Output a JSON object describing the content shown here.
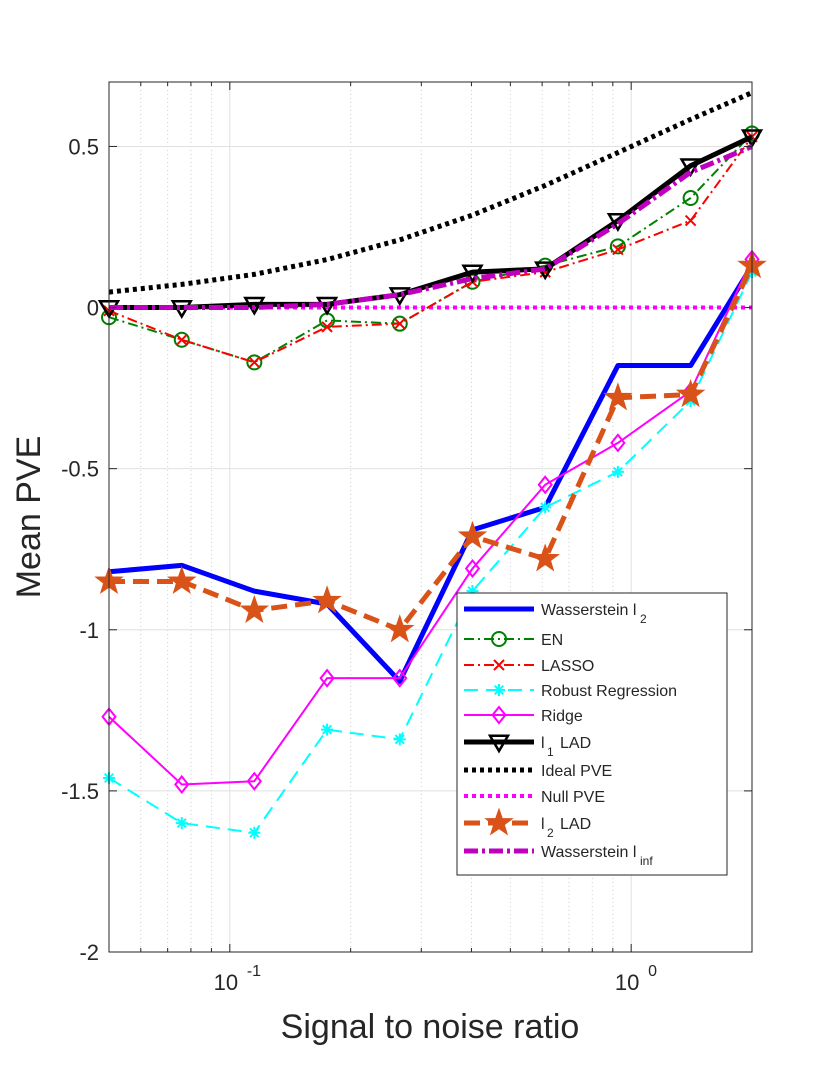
{
  "chart_data": {
    "type": "line",
    "title": "",
    "xlabel": "Signal to noise ratio",
    "ylabel": "Mean PVE",
    "xscale": "log",
    "xlim": [
      0.05,
      2.0
    ],
    "ylim": [
      -2,
      0.7
    ],
    "yticks": [
      {
        "value": 0.5,
        "label": "0.5"
      },
      {
        "value": 0,
        "label": "0"
      },
      {
        "value": -0.5,
        "label": "-0.5"
      },
      {
        "value": -1,
        "label": "-1"
      },
      {
        "value": -1.5,
        "label": "-1.5"
      },
      {
        "value": -2,
        "label": "-2"
      }
    ],
    "xticks": [
      {
        "value": 0.1,
        "base": "10",
        "exp": "-1"
      },
      {
        "value": 1,
        "base": "10",
        "exp": "0"
      }
    ],
    "grid": true,
    "legend_position": "bottom-right",
    "x": [
      0.05,
      0.0759,
      0.1151,
      0.1747,
      0.2651,
      0.4024,
      0.6106,
      0.9267,
      1.4064,
      2.0
    ],
    "series": [
      {
        "name": "Wasserstein l",
        "sub": "2",
        "subpos": "far",
        "color": "#0000ff",
        "dash": "",
        "width": 5,
        "marker": "none",
        "values": [
          -0.82,
          -0.8,
          -0.88,
          -0.92,
          -1.16,
          -0.69,
          -0.62,
          -0.18,
          -0.18,
          0.13
        ]
      },
      {
        "name": "EN",
        "sub": "",
        "color": "#008000",
        "dash": "10,4,2,4",
        "width": 2,
        "marker": "circle",
        "values": [
          -0.03,
          -0.1,
          -0.17,
          -0.04,
          -0.05,
          0.08,
          0.13,
          0.19,
          0.34,
          0.54
        ]
      },
      {
        "name": "LASSO",
        "sub": "",
        "color": "#ff0000",
        "dash": "10,4,2,4",
        "width": 2,
        "marker": "x",
        "values": [
          -0.01,
          -0.1,
          -0.17,
          -0.06,
          -0.05,
          0.08,
          0.11,
          0.18,
          0.27,
          0.53
        ]
      },
      {
        "name": "Robust Regression",
        "sub": "",
        "color": "#00ffff",
        "dash": "14,8",
        "width": 2,
        "marker": "star",
        "values": [
          -1.46,
          -1.6,
          -1.63,
          -1.31,
          -1.34,
          -0.88,
          -0.62,
          -0.51,
          -0.29,
          0.11
        ]
      },
      {
        "name": "Ridge",
        "sub": "",
        "color": "#ff00ff",
        "dash": "",
        "width": 2,
        "marker": "diamond",
        "values": [
          -1.27,
          -1.48,
          -1.47,
          -1.15,
          -1.15,
          -0.81,
          -0.55,
          -0.42,
          -0.26,
          0.15
        ]
      },
      {
        "name": "l",
        "sub": "1",
        "subpos": "near",
        "after": "LAD",
        "color": "#000000",
        "dash": "",
        "width": 5,
        "marker": "triangle",
        "values": [
          0.0,
          0.0,
          0.01,
          0.01,
          0.04,
          0.11,
          0.12,
          0.27,
          0.44,
          0.53
        ]
      },
      {
        "name": "Ideal PVE",
        "sub": "",
        "color": "#000000",
        "dash": "4,4",
        "width": 5,
        "marker": "none",
        "values": [
          0.048,
          0.072,
          0.103,
          0.149,
          0.21,
          0.287,
          0.379,
          0.481,
          0.584,
          0.667
        ]
      },
      {
        "name": "Null PVE",
        "sub": "",
        "color": "#ff00ff",
        "dash": "4,4",
        "width": 4,
        "marker": "none",
        "values": [
          0,
          0,
          0,
          0,
          0,
          0,
          0,
          0,
          0,
          0
        ]
      },
      {
        "name": "l",
        "sub": "2",
        "subpos": "near",
        "after": "LAD",
        "color": "#d95319",
        "dash": "16,8",
        "width": 5,
        "marker": "pentagram",
        "values": [
          -0.85,
          -0.85,
          -0.94,
          -0.91,
          -1.0,
          -0.71,
          -0.78,
          -0.28,
          -0.27,
          0.13
        ]
      },
      {
        "name": "Wasserstein l",
        "sub": "inf",
        "subpos": "far",
        "color": "#bf00bf",
        "dash": "14,4,3,4",
        "width": 5,
        "marker": "none",
        "values": [
          0.0,
          0.0,
          0.0,
          0.01,
          0.04,
          0.09,
          0.12,
          0.26,
          0.42,
          0.5
        ]
      }
    ]
  }
}
